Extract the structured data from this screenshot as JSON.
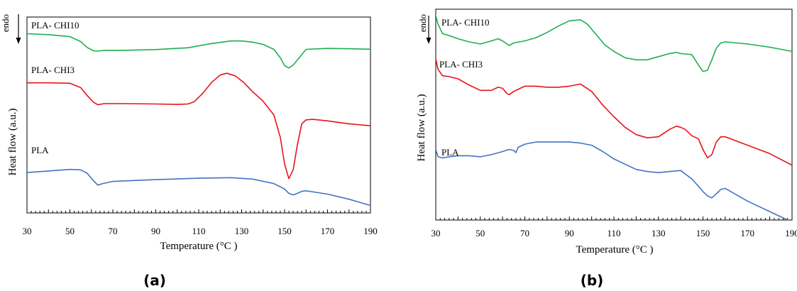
{
  "colors": {
    "PLA": "#4472c4",
    "PLA- CHI3": "#e8121b",
    "PLA- CHI10": "#1fae4f"
  },
  "chart_data": [
    {
      "type": "line",
      "panel_label": "(a)",
      "xlabel": "Temperature (°C )",
      "ylabel": "Heat flow (a.u.)",
      "direction_label": "endo",
      "xlim": [
        30,
        190
      ],
      "ylim": [
        0,
        100
      ],
      "x_ticks": [
        30,
        50,
        70,
        90,
        110,
        130,
        150,
        170,
        190
      ],
      "grid": false,
      "series": [
        {
          "name": "PLA- CHI10",
          "x": [
            30,
            40,
            50,
            55,
            58,
            61,
            63,
            66,
            75,
            90,
            105,
            115,
            125,
            130,
            135,
            140,
            145,
            148,
            150,
            152,
            154,
            157,
            160,
            170,
            180,
            190
          ],
          "y": [
            91.5,
            91.0,
            90.0,
            87.5,
            84.5,
            82.8,
            82.6,
            83.0,
            83.0,
            83.4,
            84.3,
            86.3,
            87.8,
            87.8,
            87.2,
            86.0,
            83.5,
            79.2,
            75.2,
            74.0,
            75.5,
            79.5,
            83.5,
            84.0,
            83.8,
            83.6
          ]
        },
        {
          "name": "PLA- CHI3",
          "x": [
            30,
            40,
            50,
            55,
            58,
            61,
            63,
            66,
            75,
            90,
            100,
            105,
            108,
            112,
            116,
            120,
            123,
            127,
            131,
            135,
            140,
            145,
            148,
            150,
            152,
            154,
            156,
            158,
            160,
            163,
            170,
            180,
            190
          ],
          "y": [
            66.4,
            66.4,
            66.2,
            64.0,
            60.0,
            56.5,
            55.2,
            55.8,
            55.8,
            55.6,
            55.4,
            55.6,
            56.8,
            61.2,
            66.6,
            70.4,
            71.3,
            70.0,
            66.6,
            62.0,
            57.0,
            50.0,
            38.5,
            25.0,
            17.5,
            22.0,
            35.0,
            45.5,
            47.5,
            47.8,
            47.0,
            45.5,
            44.5
          ]
        },
        {
          "name": "PLA",
          "x": [
            30,
            40,
            50,
            55,
            58,
            61,
            63,
            65,
            70,
            90,
            110,
            125,
            135,
            145,
            150,
            152,
            154,
            156,
            158,
            160,
            170,
            180,
            190
          ],
          "y": [
            20.6,
            21.4,
            22.2,
            22.0,
            20.3,
            16.4,
            14.2,
            14.9,
            16.1,
            17.0,
            17.7,
            18.0,
            17.3,
            15.0,
            12.2,
            10.0,
            9.2,
            10.0,
            11.0,
            11.3,
            9.6,
            7.0,
            3.8
          ]
        }
      ]
    },
    {
      "type": "line",
      "panel_label": "(b)",
      "xlabel": "Temperature (°C )",
      "ylabel": "Heat flow (a.u.)",
      "direction_label": "endo",
      "xlim": [
        30,
        190
      ],
      "ylim": [
        0,
        100
      ],
      "x_ticks": [
        30,
        50,
        70,
        90,
        110,
        130,
        150,
        170,
        190
      ],
      "grid": false,
      "series": [
        {
          "name": "PLA- CHI10",
          "x": [
            30,
            31,
            33,
            36,
            40,
            45,
            50,
            55,
            58,
            60,
            62,
            63,
            65,
            70,
            75,
            80,
            85,
            90,
            95,
            98,
            102,
            106,
            110,
            115,
            120,
            125,
            130,
            135,
            138,
            140,
            142,
            145,
            148,
            150,
            152,
            154,
            156,
            158,
            160,
            170,
            180,
            190
          ],
          "y": [
            97.0,
            93.0,
            88.5,
            87.5,
            86.0,
            84.5,
            83.5,
            85.0,
            86.0,
            85.0,
            83.5,
            82.8,
            84.0,
            85.0,
            86.5,
            89.0,
            92.0,
            94.5,
            95.0,
            93.0,
            88.0,
            83.0,
            80.0,
            77.0,
            76.0,
            76.0,
            77.5,
            79.0,
            79.5,
            79.0,
            78.8,
            78.5,
            73.5,
            70.5,
            71.0,
            76.0,
            81.5,
            84.0,
            84.5,
            83.5,
            82.0,
            80.0
          ]
        },
        {
          "name": "PLA- CHI3",
          "x": [
            30,
            31,
            33,
            36,
            40,
            45,
            50,
            55,
            58,
            60,
            62,
            63,
            65,
            70,
            75,
            80,
            85,
            90,
            95,
            100,
            105,
            110,
            115,
            120,
            125,
            130,
            135,
            138,
            140,
            142,
            145,
            148,
            150,
            152,
            154,
            156,
            158,
            160,
            170,
            180,
            190
          ],
          "y": [
            76.5,
            71.5,
            68.5,
            68.0,
            67.0,
            64.0,
            61.5,
            61.5,
            63.0,
            62.5,
            60.0,
            59.5,
            61.0,
            63.5,
            63.5,
            63.0,
            63.0,
            63.5,
            64.5,
            61.0,
            54.5,
            49.0,
            44.0,
            40.5,
            39.0,
            39.5,
            43.0,
            44.5,
            44.0,
            43.0,
            40.0,
            38.5,
            33.5,
            29.5,
            31.0,
            37.0,
            39.5,
            39.5,
            35.5,
            31.5,
            26.0
          ]
        },
        {
          "name": "PLA",
          "x": [
            30,
            31,
            33,
            36,
            40,
            45,
            50,
            55,
            60,
            63,
            65,
            66,
            67,
            68,
            70,
            75,
            80,
            85,
            90,
            95,
            100,
            105,
            110,
            115,
            120,
            125,
            130,
            135,
            140,
            145,
            148,
            150,
            152,
            154,
            156,
            158,
            160,
            165,
            170,
            175,
            180,
            185,
            190
          ],
          "y": [
            33.5,
            30.0,
            29.5,
            30.0,
            30.5,
            30.5,
            30.0,
            31.0,
            32.5,
            33.5,
            33.0,
            32.0,
            34.5,
            35.0,
            36.0,
            37.0,
            37.0,
            37.0,
            37.0,
            36.5,
            35.5,
            32.5,
            29.0,
            26.5,
            24.0,
            23.0,
            22.5,
            23.0,
            23.5,
            19.5,
            16.0,
            13.5,
            11.5,
            10.5,
            12.5,
            14.5,
            15.0,
            12.0,
            9.0,
            6.5,
            4.0,
            1.5,
            -1.0
          ]
        }
      ]
    }
  ]
}
